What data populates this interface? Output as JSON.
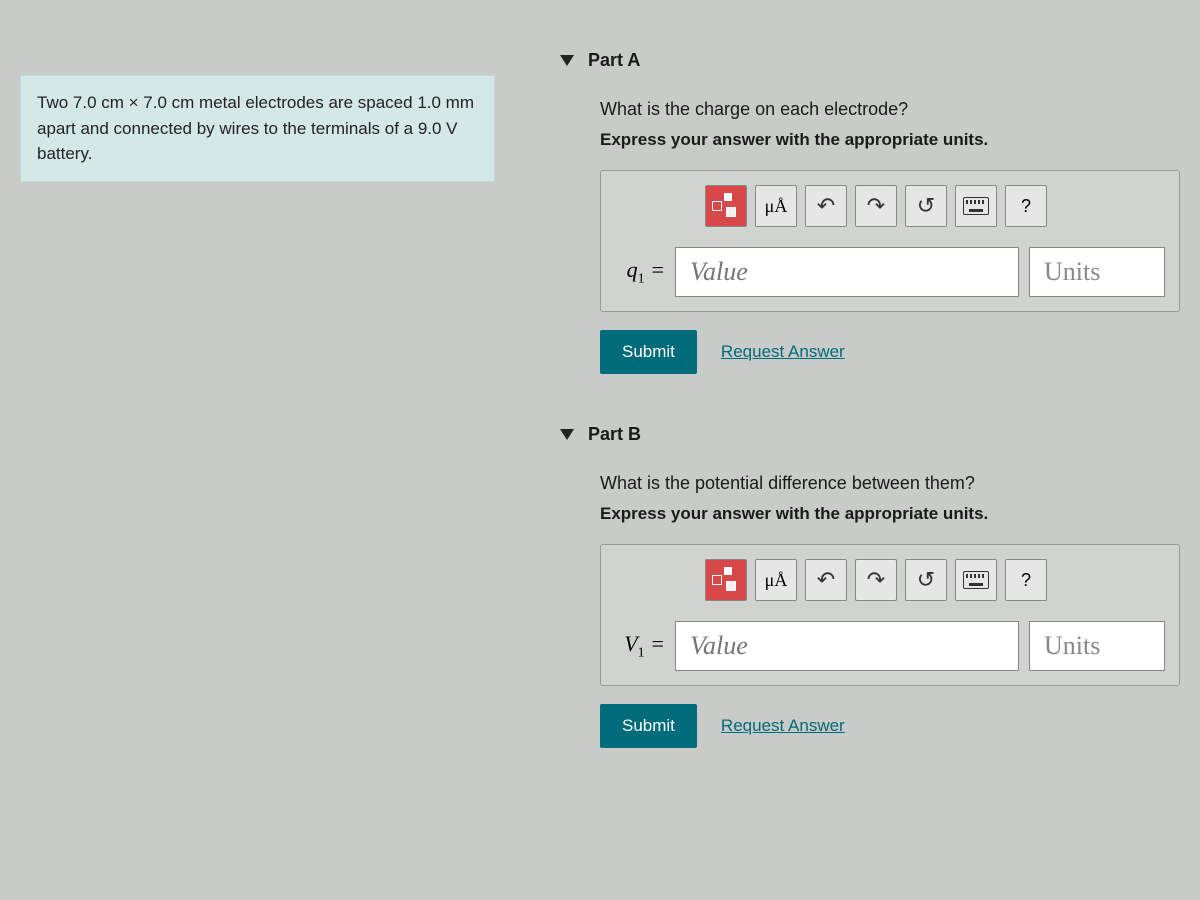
{
  "problem": {
    "statement": "Two 7.0 cm × 7.0 cm metal electrodes are spaced 1.0 mm apart and connected by wires to the terminals of a 9.0 V battery."
  },
  "parts": {
    "a": {
      "title": "Part A",
      "question": "What is the charge on each electrode?",
      "instruction": "Express your answer with the appropriate units.",
      "variable": "q",
      "subscript": "1",
      "value_placeholder": "Value",
      "units_placeholder": "Units"
    },
    "b": {
      "title": "Part B",
      "question": "What is the potential difference between them?",
      "instruction": "Express your answer with the appropriate units.",
      "variable": "V",
      "subscript": "1",
      "value_placeholder": "Value",
      "units_placeholder": "Units"
    }
  },
  "toolbar": {
    "units_symbol": "μÅ",
    "help_symbol": "?",
    "undo_glyph": "↶",
    "redo_glyph": "↷",
    "reset_glyph": "↺"
  },
  "actions": {
    "submit": "Submit",
    "request_answer": "Request Answer"
  },
  "colors": {
    "background": "#c8cbc8",
    "statement_bg": "#d4e8e8",
    "submit_bg": "#006b7a",
    "templates_bg": "#d84848"
  }
}
